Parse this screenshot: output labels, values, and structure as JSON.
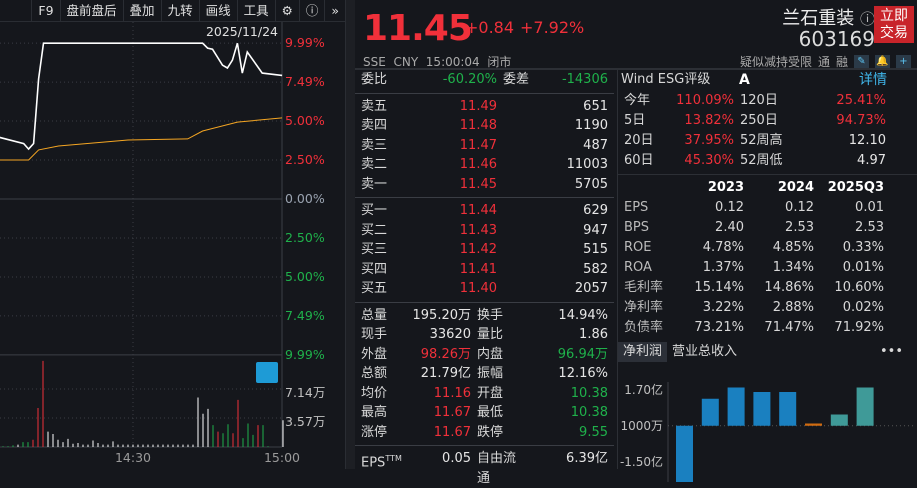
{
  "toolbar": {
    "items": [
      "F9",
      "盘前盘后",
      "叠加",
      "九转",
      "画线",
      "工具"
    ],
    "icons": [
      "gear-icon",
      "help-icon",
      "expand-icon"
    ]
  },
  "chart": {
    "date": "2025/11/24",
    "price_axis_up": [
      "9.99%",
      "7.49%",
      "5.00%",
      "2.50%",
      "0.00%"
    ],
    "price_axis_down": [
      "2.50%",
      "5.00%",
      "7.49%",
      "9.99%"
    ],
    "vol_axis": [
      "7.14万",
      "3.57万"
    ],
    "time_labels": [
      "14:30",
      "15:00"
    ],
    "price_line": [
      [
        "14:03",
        3.96
      ],
      [
        "14:08",
        3.55
      ],
      [
        "14:09",
        3.2
      ],
      [
        "14:10",
        3.55
      ],
      [
        "14:11",
        7.7
      ],
      [
        "14:12",
        9.99
      ],
      [
        "14:44",
        9.99
      ],
      [
        "14:45",
        9.67
      ],
      [
        "14:46",
        9.6
      ],
      [
        "14:48",
        8.58
      ],
      [
        "14:49",
        8.4
      ],
      [
        "14:50",
        8.9
      ],
      [
        "14:51",
        9.99
      ],
      [
        "14:52",
        8.07
      ],
      [
        "14:53",
        9.42
      ],
      [
        "14:56",
        8.07
      ],
      [
        "15:00",
        7.92
      ]
    ],
    "avg_line": [
      [
        "14:03",
        2.5
      ],
      [
        "14:09",
        2.5
      ],
      [
        "14:11",
        3.15
      ],
      [
        "14:15",
        3.4
      ],
      [
        "14:29",
        3.78
      ],
      [
        "14:41",
        3.85
      ],
      [
        "14:44",
        4.36
      ],
      [
        "14:51",
        4.93
      ],
      [
        "15:00",
        5.2
      ]
    ],
    "volume_wan": [
      0.1,
      0.1,
      0.2,
      0.3,
      0.6,
      0.6,
      0.9,
      4.8,
      10.6,
      1.9,
      1.6,
      0.9,
      0.6,
      1.0,
      0.4,
      0.5,
      0.3,
      0.3,
      0.8,
      0.5,
      0.3,
      0.3,
      0.7,
      0.3,
      0.3,
      0.3,
      0.3,
      0.3,
      0.3,
      0.3,
      0.3,
      0.3,
      0.3,
      0.3,
      0.3,
      0.3,
      0.3,
      0.3,
      0.3,
      6.1,
      4.1,
      4.7,
      2.7,
      1.9,
      1.7,
      2.8,
      1.7,
      5.8,
      1.1,
      2.9,
      1.5,
      2.7,
      2.7,
      0.1,
      0,
      0,
      3.3
    ],
    "volume_dir": "gggwggrrrwwwwwwwwwwwwwwwwwwwwwwwwwwwwwwwwwgrggrrgggrgggg",
    "colors": {
      "up": "#f0303a",
      "down": "#1fb14b",
      "price": "#ffffff",
      "avg": "#f5a623"
    }
  },
  "quote": {
    "price": "11.45",
    "change": "+0.84",
    "change_pct": "+7.92%",
    "name": "兰石重装",
    "code": "603169",
    "trade_btn": [
      "立即",
      "交易"
    ],
    "exchange": "SSE",
    "currency": "CNY",
    "time": "15:00:04",
    "status": "闭市",
    "tags": [
      "疑似减持受限",
      "通",
      "融"
    ]
  },
  "book": {
    "weibi_label": "委比",
    "weibi": "-60.20%",
    "weicha_label": "委差",
    "weicha": "-14306",
    "asks": [
      {
        "label": "卖五",
        "price": "11.49",
        "vol": "651"
      },
      {
        "label": "卖四",
        "price": "11.48",
        "vol": "1190"
      },
      {
        "label": "卖三",
        "price": "11.47",
        "vol": "487"
      },
      {
        "label": "卖二",
        "price": "11.46",
        "vol": "11003"
      },
      {
        "label": "卖一",
        "price": "11.45",
        "vol": "5705"
      }
    ],
    "bids": [
      {
        "label": "买一",
        "price": "11.44",
        "vol": "629"
      },
      {
        "label": "买二",
        "price": "11.43",
        "vol": "947"
      },
      {
        "label": "买三",
        "price": "11.42",
        "vol": "515"
      },
      {
        "label": "买四",
        "price": "11.41",
        "vol": "582"
      },
      {
        "label": "买五",
        "price": "11.40",
        "vol": "2057"
      }
    ],
    "stats": [
      [
        "总量",
        "195.20万",
        "white",
        "换手",
        "14.94%",
        "white"
      ],
      [
        "现手",
        "33620",
        "white",
        "量比",
        "1.86",
        "white"
      ],
      [
        "外盘",
        "98.26万",
        "red",
        "内盘",
        "96.94万",
        "green"
      ],
      [
        "总额",
        "21.79亿",
        "white",
        "振幅",
        "12.16%",
        "white"
      ],
      [
        "均价",
        "11.16",
        "red",
        "开盘",
        "10.38",
        "green"
      ],
      [
        "最高",
        "11.67",
        "red",
        "最低",
        "10.38",
        "green"
      ],
      [
        "涨停",
        "11.67",
        "red",
        "跌停",
        "9.55",
        "green"
      ]
    ],
    "extra": [
      "EPS",
      "TTM",
      "0.05",
      "自由流通",
      "6.39亿"
    ]
  },
  "fin": {
    "esg_label": "Wind ESG评级",
    "esg": "A",
    "detail": "详情",
    "perf": [
      [
        "今年",
        "110.09%",
        "120日",
        "25.41%"
      ],
      [
        "5日",
        "13.82%",
        "250日",
        "94.73%"
      ],
      [
        "20日",
        "37.95%",
        "52周高",
        "12.10"
      ],
      [
        "60日",
        "45.30%",
        "52周低",
        "4.97"
      ]
    ],
    "years": [
      "2023",
      "2024",
      "2025Q3"
    ],
    "rows": [
      [
        "EPS",
        "0.12",
        "0.12",
        "0.01"
      ],
      [
        "BPS",
        "2.40",
        "2.53",
        "2.53"
      ],
      [
        "ROE",
        "4.78%",
        "4.85%",
        "0.33%"
      ],
      [
        "ROA",
        "1.37%",
        "1.34%",
        "0.01%"
      ],
      [
        "毛利率",
        "15.14%",
        "14.86%",
        "10.60%"
      ],
      [
        "净利率",
        "3.22%",
        "2.88%",
        "0.02%"
      ],
      [
        "负债率",
        "73.21%",
        "71.47%",
        "71.92%"
      ]
    ],
    "tabs": [
      "净利润",
      "营业总收入"
    ],
    "more": "•••",
    "bar_axis": [
      "1.70亿",
      "1000万",
      "-1.50亿"
    ],
    "bars_yi": [
      -2.8,
      1.3,
      1.8,
      1.6,
      1.6,
      0.2,
      0.6,
      1.8
    ],
    "bar_colors": [
      "#1a80c0",
      "#1a80c0",
      "#1a80c0",
      "#1a80c0",
      "#1a80c0",
      "#d06b10",
      "#3f9a98",
      "#3f9a98"
    ]
  }
}
